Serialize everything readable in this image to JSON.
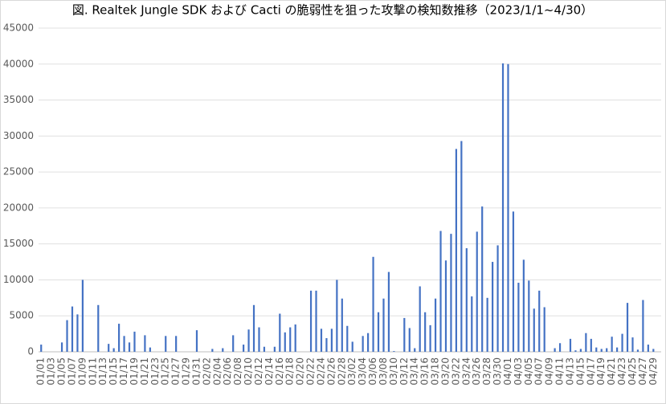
{
  "chart_data": {
    "type": "bar",
    "title": "図. Realtek Jungle SDK および Cacti の脆弱性を狙った攻撃の検知数推移（2023/1/1~4/30）",
    "categories": [
      "01/01",
      null,
      "01/03",
      null,
      "01/05",
      null,
      "01/07",
      null,
      "01/09",
      null,
      "01/11",
      null,
      "01/13",
      null,
      "01/15",
      null,
      "01/17",
      null,
      "01/19",
      null,
      "01/21",
      null,
      "01/23",
      null,
      "01/25",
      null,
      "01/27",
      null,
      "01/29",
      null,
      "01/31",
      null,
      "02/02",
      null,
      "02/04",
      null,
      "02/06",
      null,
      "02/08",
      null,
      "02/10",
      null,
      "02/12",
      null,
      "02/14",
      null,
      "02/16",
      null,
      "02/18",
      null,
      "02/20",
      null,
      "02/22",
      null,
      "02/24",
      null,
      "02/26",
      null,
      "02/28",
      null,
      "03/02",
      null,
      "03/04",
      null,
      "03/06",
      null,
      "03/08",
      null,
      "03/10",
      null,
      "03/12",
      null,
      "03/14",
      null,
      "03/16",
      null,
      "03/18",
      null,
      "03/20",
      null,
      "03/22",
      null,
      "03/24",
      null,
      "03/26",
      null,
      "03/28",
      null,
      "03/30",
      null,
      "04/01",
      null,
      "04/03",
      null,
      "04/05",
      null,
      "04/07",
      null,
      "04/09",
      null,
      "04/11",
      null,
      "04/13",
      null,
      "04/15",
      null,
      "04/17",
      null,
      "04/19",
      null,
      "04/21",
      null,
      "04/23",
      null,
      "04/25",
      null,
      "04/27",
      null,
      "04/29",
      null
    ],
    "values": [
      1000,
      0,
      0,
      0,
      1300,
      4400,
      6300,
      5200,
      10000,
      0,
      0,
      6500,
      0,
      1100,
      500,
      3900,
      2200,
      1300,
      2800,
      0,
      2300,
      600,
      0,
      0,
      2200,
      0,
      2200,
      0,
      0,
      0,
      3000,
      0,
      0,
      400,
      0,
      500,
      0,
      2300,
      0,
      1000,
      3100,
      6500,
      3400,
      700,
      0,
      700,
      5300,
      2700,
      3400,
      3800,
      0,
      0,
      8500,
      8500,
      3200,
      1900,
      3200,
      10000,
      7400,
      3600,
      1400,
      0,
      2200,
      2600,
      13200,
      5500,
      7400,
      11100,
      100,
      0,
      4700,
      3300,
      500,
      9100,
      5500,
      3700,
      7400,
      16800,
      12700,
      16400,
      28200,
      29300,
      14400,
      7700,
      16700,
      20200,
      7500,
      12500,
      14800,
      40100,
      40000,
      19500,
      9600,
      12800,
      9900,
      6000,
      8500,
      6200,
      0,
      500,
      1200,
      0,
      1800,
      200,
      400,
      2600,
      1800,
      600,
      400,
      500,
      2100,
      600,
      2500,
      6800,
      2000,
      300,
      7200,
      1000,
      400,
      0
    ],
    "color": "#4472c4",
    "ylim": [
      0,
      45000
    ],
    "yticks": [
      0,
      5000,
      10000,
      15000,
      20000,
      25000,
      30000,
      35000,
      40000,
      45000
    ],
    "grid": true
  }
}
